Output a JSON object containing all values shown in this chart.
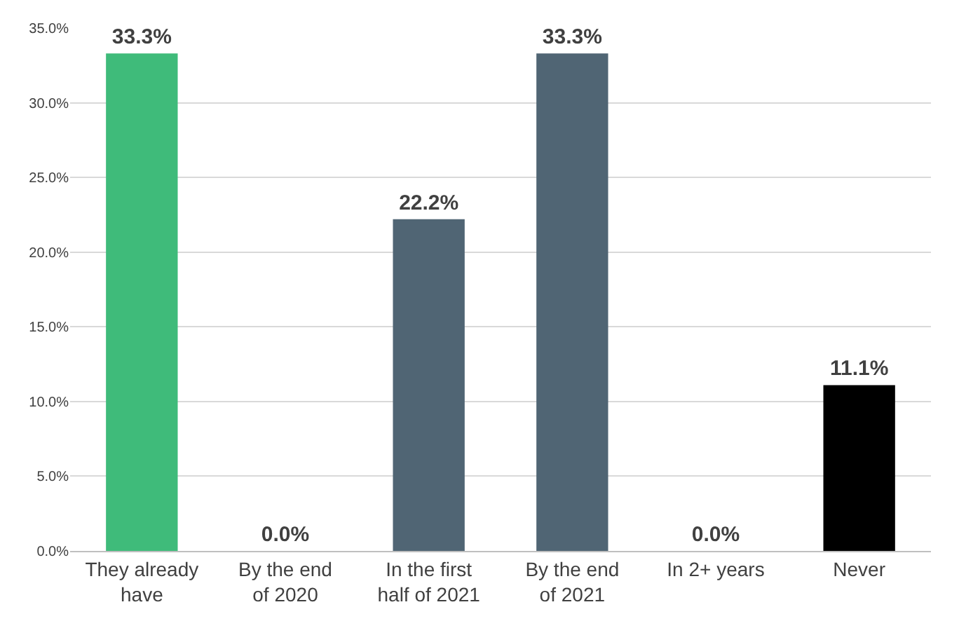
{
  "chart_data": {
    "type": "bar",
    "categories": [
      "They already have",
      "By the end of 2020",
      "In the first half of 2021",
      "By the end of 2021",
      "In 2+ years",
      "Never"
    ],
    "values": [
      33.3,
      0.0,
      22.2,
      33.3,
      0.0,
      11.1
    ],
    "colors": [
      "#3fbb7a",
      null,
      "#506574",
      "#506574",
      null,
      "#000000"
    ],
    "value_labels": [
      "33.3%",
      "0.0%",
      "22.2%",
      "33.3%",
      "0.0%",
      "11.1%"
    ],
    "ylim": [
      0,
      35
    ],
    "yticks": [
      {
        "value": 0,
        "label": "0.0%"
      },
      {
        "value": 5,
        "label": "5.0%"
      },
      {
        "value": 10,
        "label": "10.0%"
      },
      {
        "value": 15,
        "label": "15.0%"
      },
      {
        "value": 20,
        "label": "20.0%"
      },
      {
        "value": 25,
        "label": "25.0%"
      },
      {
        "value": 30,
        "label": "30.0%"
      },
      {
        "value": 35,
        "label": "35.0%"
      }
    ],
    "grid": "y"
  }
}
